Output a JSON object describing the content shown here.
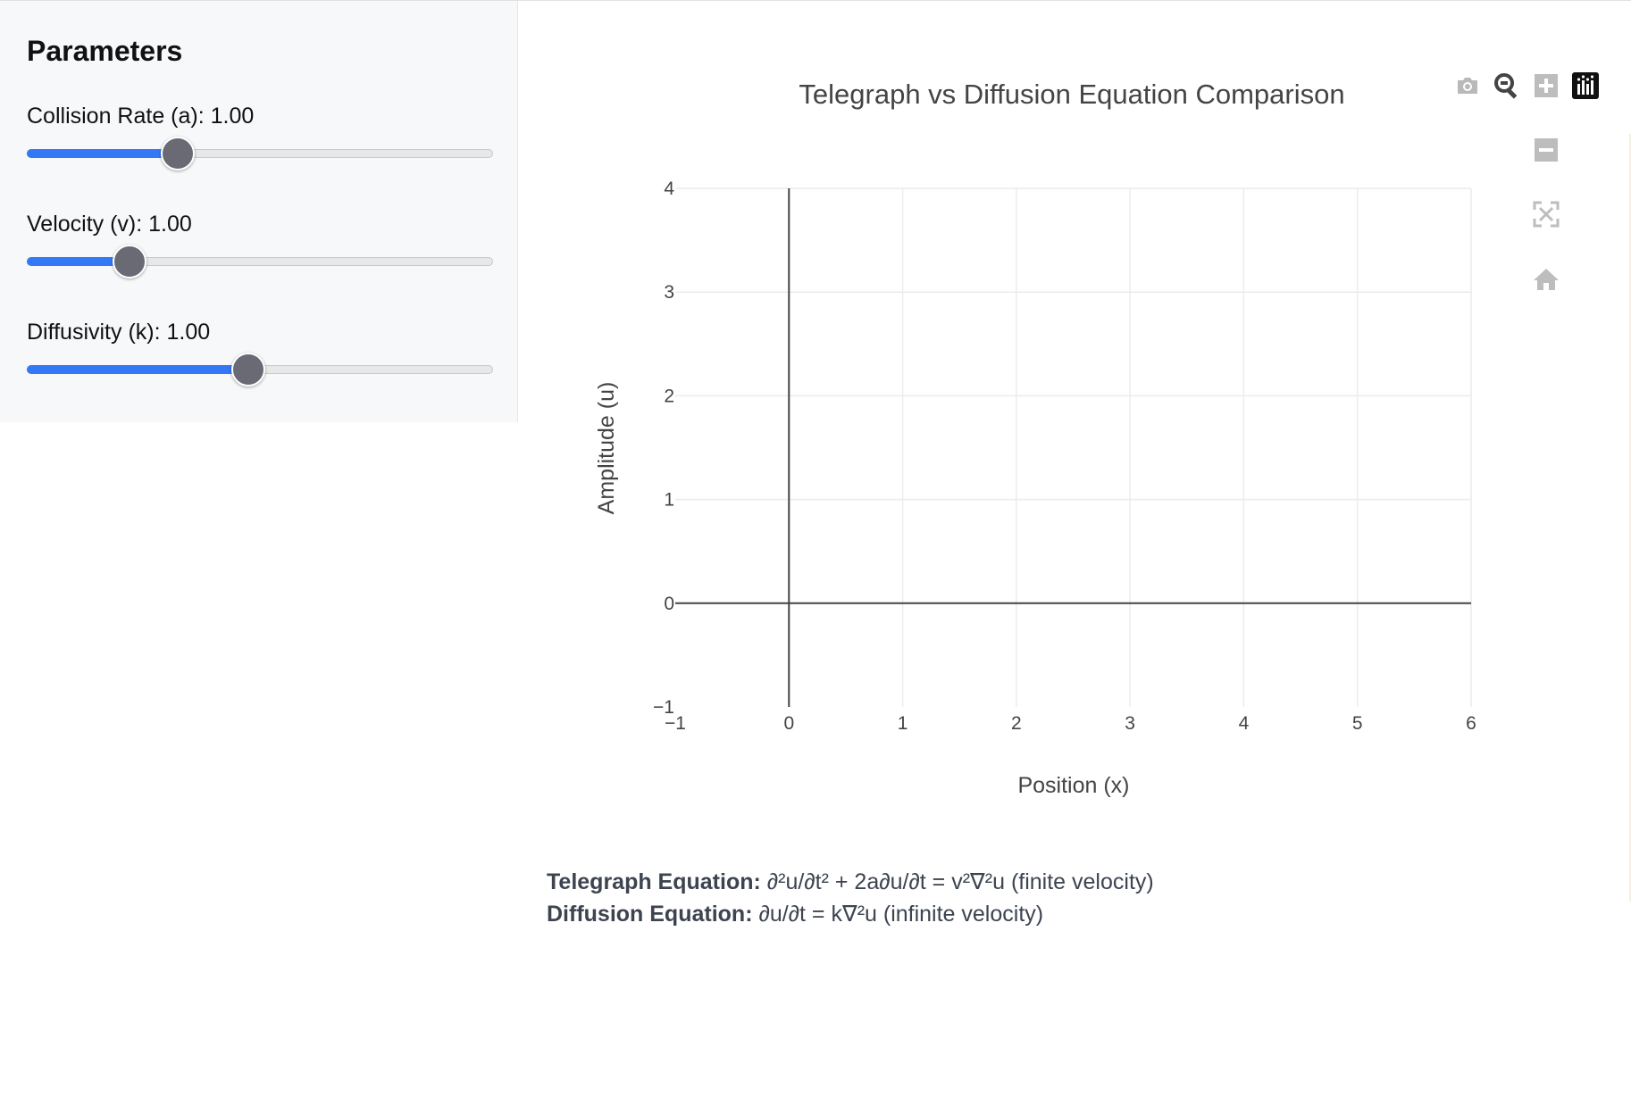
{
  "panel": {
    "title": "Parameters",
    "params": [
      {
        "label": "Collision Rate (a): 1.00",
        "value": 1.0,
        "fraction": 0.324
      },
      {
        "label": "Velocity (v): 1.00",
        "value": 1.0,
        "fraction": 0.22
      },
      {
        "label": "Diffusivity (k): 1.00",
        "value": 1.0,
        "fraction": 0.475
      }
    ]
  },
  "colors": {
    "slider_fill": "#3478f6",
    "slider_thumb": "#696a74",
    "panel_bg": "#f7f8fa",
    "text_muted": "#3d4450"
  },
  "modebar": {
    "icons": [
      "camera-icon",
      "zoom-icon",
      "zoom-in-icon",
      "plotly-logo-icon",
      "zoom-out-icon",
      "autoscale-icon",
      "home-icon"
    ]
  },
  "chart_data": {
    "type": "line",
    "title": "Telegraph vs Diffusion Equation Comparison",
    "xlabel": "Position (x)",
    "ylabel": "Amplitude (u)",
    "xlim": [
      -1,
      6
    ],
    "ylim": [
      -1,
      4
    ],
    "xticks": [
      "−1",
      "0",
      "1",
      "2",
      "3",
      "4",
      "5",
      "6"
    ],
    "yticks": [
      "−1",
      "0",
      "1",
      "2",
      "3",
      "4"
    ],
    "grid": true,
    "series": []
  },
  "equations": {
    "telegraph_label": "Telegraph Equation:",
    "telegraph_text": " ∂²u/∂t² + 2a∂u/∂t = v²∇²u (finite velocity)",
    "diffusion_label": "Diffusion Equation:",
    "diffusion_text": " ∂u/∂t = k∇²u (infinite velocity)"
  }
}
